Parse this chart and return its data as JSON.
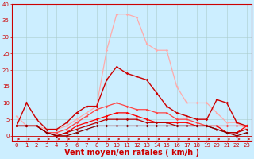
{
  "title": "",
  "xlabel": "Vent moyen/en rafales ( km/h )",
  "ylabel": "",
  "xlim": [
    -0.5,
    23.5
  ],
  "ylim": [
    -1.5,
    40
  ],
  "yticks": [
    0,
    5,
    10,
    15,
    20,
    25,
    30,
    35,
    40
  ],
  "xticks": [
    0,
    1,
    2,
    3,
    4,
    5,
    6,
    7,
    8,
    9,
    10,
    11,
    12,
    13,
    14,
    15,
    16,
    17,
    18,
    19,
    20,
    21,
    22,
    23
  ],
  "background_color": "#cceeff",
  "grid_color": "#aacccc",
  "series": [
    {
      "x": [
        0,
        1,
        2,
        3,
        4,
        5,
        6,
        7,
        8,
        9,
        10,
        11,
        12,
        13,
        14,
        15,
        16,
        17,
        18,
        19,
        20,
        21,
        22,
        23
      ],
      "y": [
        6,
        3,
        3,
        2,
        2,
        3,
        5,
        7,
        9,
        26,
        37,
        37,
        36,
        28,
        26,
        26,
        15,
        10,
        10,
        10,
        7,
        4,
        4,
        2
      ],
      "color": "#ffaaaa",
      "lw": 0.9,
      "marker": "D",
      "ms": 1.8
    },
    {
      "x": [
        0,
        1,
        2,
        3,
        4,
        5,
        6,
        7,
        8,
        9,
        10,
        11,
        12,
        13,
        14,
        15,
        16,
        17,
        18,
        19,
        20,
        21,
        22,
        23
      ],
      "y": [
        3,
        10,
        5,
        2,
        2,
        4,
        7,
        9,
        9,
        17,
        21,
        19,
        18,
        17,
        13,
        9,
        7,
        6,
        5,
        5,
        11,
        10,
        4,
        3
      ],
      "color": "#cc0000",
      "lw": 1.0,
      "marker": "D",
      "ms": 1.8
    },
    {
      "x": [
        0,
        1,
        2,
        3,
        4,
        5,
        6,
        7,
        8,
        9,
        10,
        11,
        12,
        13,
        14,
        15,
        16,
        17,
        18,
        19,
        20,
        21,
        22,
        23
      ],
      "y": [
        3,
        3,
        3,
        1,
        1,
        2,
        4,
        6,
        8,
        9,
        10,
        9,
        8,
        8,
        7,
        7,
        5,
        5,
        4,
        3,
        3,
        3,
        3,
        3
      ],
      "color": "#ff4444",
      "lw": 0.9,
      "marker": "D",
      "ms": 1.8
    },
    {
      "x": [
        0,
        1,
        2,
        3,
        4,
        5,
        6,
        7,
        8,
        9,
        10,
        11,
        12,
        13,
        14,
        15,
        16,
        17,
        18,
        19,
        20,
        21,
        22,
        23
      ],
      "y": [
        3,
        3,
        3,
        1,
        0,
        1,
        3,
        4,
        5,
        6,
        7,
        7,
        6,
        5,
        4,
        4,
        4,
        4,
        3,
        3,
        3,
        1,
        1,
        3
      ],
      "color": "#ff0000",
      "lw": 0.9,
      "marker": "D",
      "ms": 1.8
    },
    {
      "x": [
        0,
        1,
        2,
        3,
        4,
        5,
        6,
        7,
        8,
        9,
        10,
        11,
        12,
        13,
        14,
        15,
        16,
        17,
        18,
        19,
        20,
        21,
        22,
        23
      ],
      "y": [
        3,
        3,
        3,
        1,
        0,
        1,
        2,
        3,
        4,
        5,
        5,
        5,
        5,
        4,
        4,
        4,
        3,
        3,
        3,
        3,
        2,
        1,
        1,
        2
      ],
      "color": "#bb0000",
      "lw": 0.9,
      "marker": "D",
      "ms": 1.8
    },
    {
      "x": [
        0,
        1,
        2,
        3,
        4,
        5,
        6,
        7,
        8,
        9,
        10,
        11,
        12,
        13,
        14,
        15,
        16,
        17,
        18,
        19,
        20,
        21,
        22,
        23
      ],
      "y": [
        3,
        3,
        3,
        1,
        0,
        0,
        1,
        2,
        3,
        3,
        3,
        3,
        3,
        3,
        3,
        3,
        3,
        3,
        3,
        3,
        2,
        1,
        0,
        1
      ],
      "color": "#880000",
      "lw": 0.9,
      "marker": "D",
      "ms": 1.8
    }
  ],
  "xlabel_fontsize": 7,
  "tick_fontsize": 5,
  "xlabel_color": "#cc0000",
  "tick_color": "#cc0000",
  "axis_color": "#cc0000",
  "arrow_color": "#cc0000"
}
